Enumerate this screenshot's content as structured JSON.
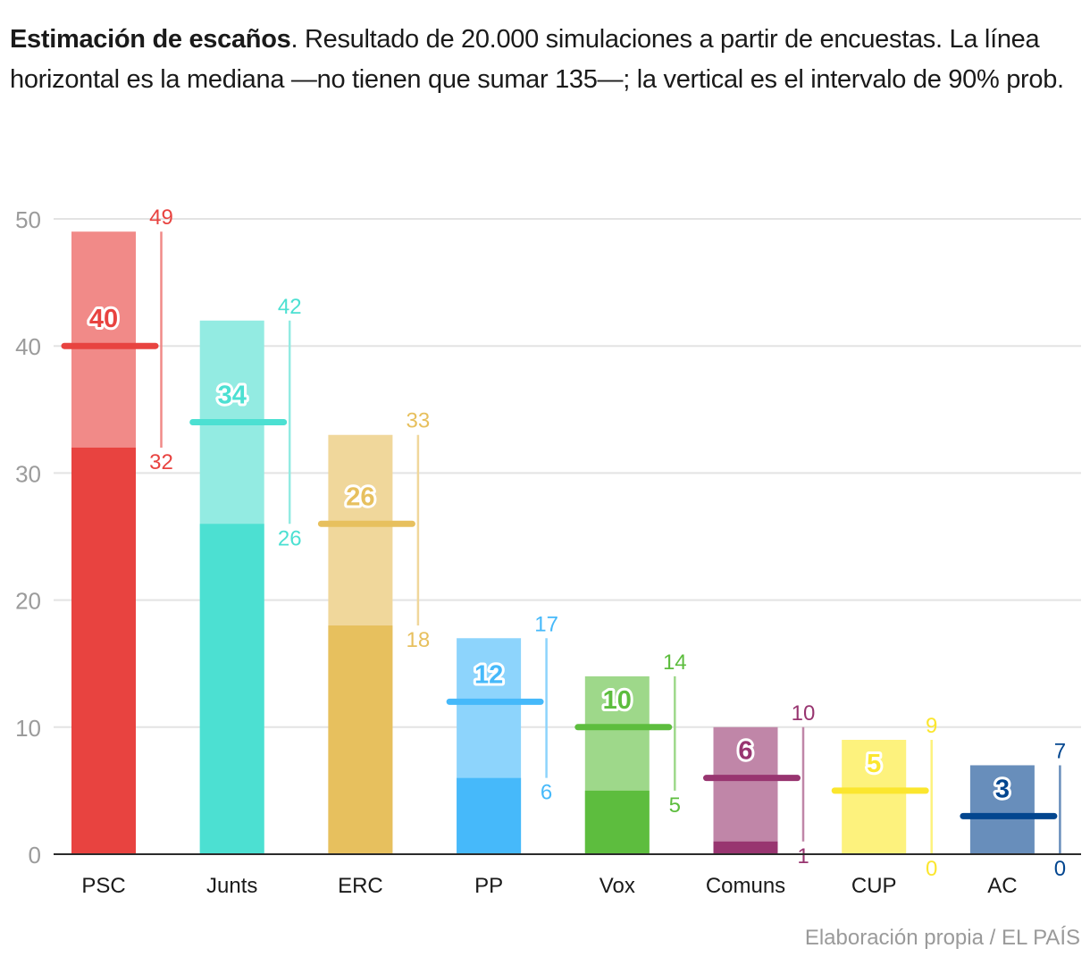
{
  "title": {
    "bold": "Estimación de escaños",
    "rest": ". Resultado de 20.000 simulaciones a partir de encuestas. La línea horizontal es la mediana —no tienen que sumar 135—; la vertical es el intervalo de 90% prob."
  },
  "source": "Elaboración propia / EL PAÍS",
  "chart_data": {
    "type": "bar",
    "title": "Estimación de escaños",
    "xlabel": "",
    "ylabel": "",
    "ylim": [
      0,
      50
    ],
    "yticks": [
      0,
      10,
      20,
      30,
      40,
      50
    ],
    "grid": true,
    "categories": [
      "PSC",
      "Junts",
      "ERC",
      "PP",
      "Vox",
      "Comuns",
      "CUP",
      "AC"
    ],
    "series": [
      {
        "name": "median",
        "values": [
          40,
          34,
          26,
          12,
          10,
          6,
          5,
          3
        ]
      },
      {
        "name": "interval_low_90",
        "values": [
          32,
          26,
          18,
          6,
          5,
          1,
          0,
          0
        ]
      },
      {
        "name": "interval_high_90",
        "values": [
          49,
          42,
          33,
          17,
          14,
          10,
          9,
          7
        ]
      }
    ],
    "colors": [
      "#e84340",
      "#4ce0d2",
      "#e7c05e",
      "#46b9fa",
      "#5dbd3e",
      "#983570",
      "#fbe62e",
      "#03468f"
    ],
    "light_colors": [
      "#f18a88",
      "#93ebe2",
      "#f0d79b",
      "#8dd4fc",
      "#9ed88a",
      "#c086a8",
      "#fdf27d",
      "#688ebb"
    ]
  }
}
